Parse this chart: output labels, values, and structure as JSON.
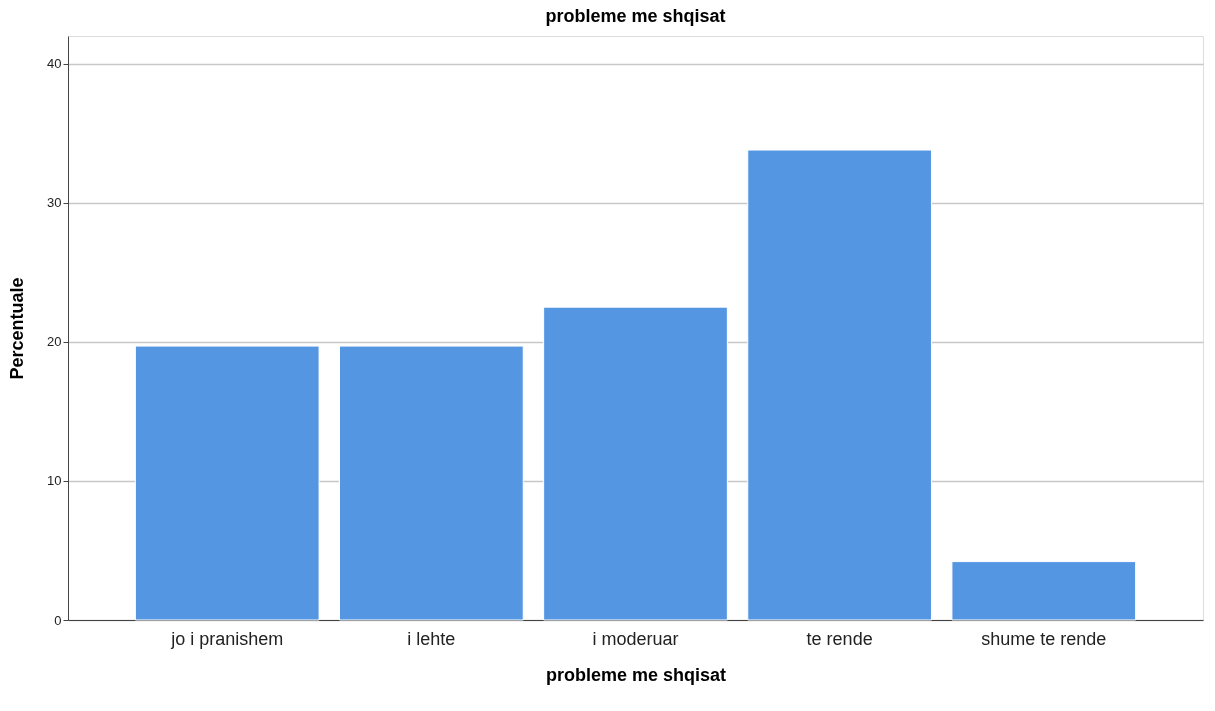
{
  "chart_data": {
    "type": "bar",
    "title": "probleme me shqisat",
    "xlabel": "probleme me shqisat",
    "ylabel": "Percentuale",
    "categories": [
      "jo i pranishem",
      "i lehte",
      "i moderuar",
      "te rende",
      "shume te rende"
    ],
    "values": [
      19.7,
      19.7,
      22.5,
      33.8,
      4.2
    ],
    "color": "#5596e3",
    "ylim": [
      0,
      42
    ],
    "yticks": [
      0,
      10,
      20,
      30,
      40
    ],
    "grid": "y"
  }
}
